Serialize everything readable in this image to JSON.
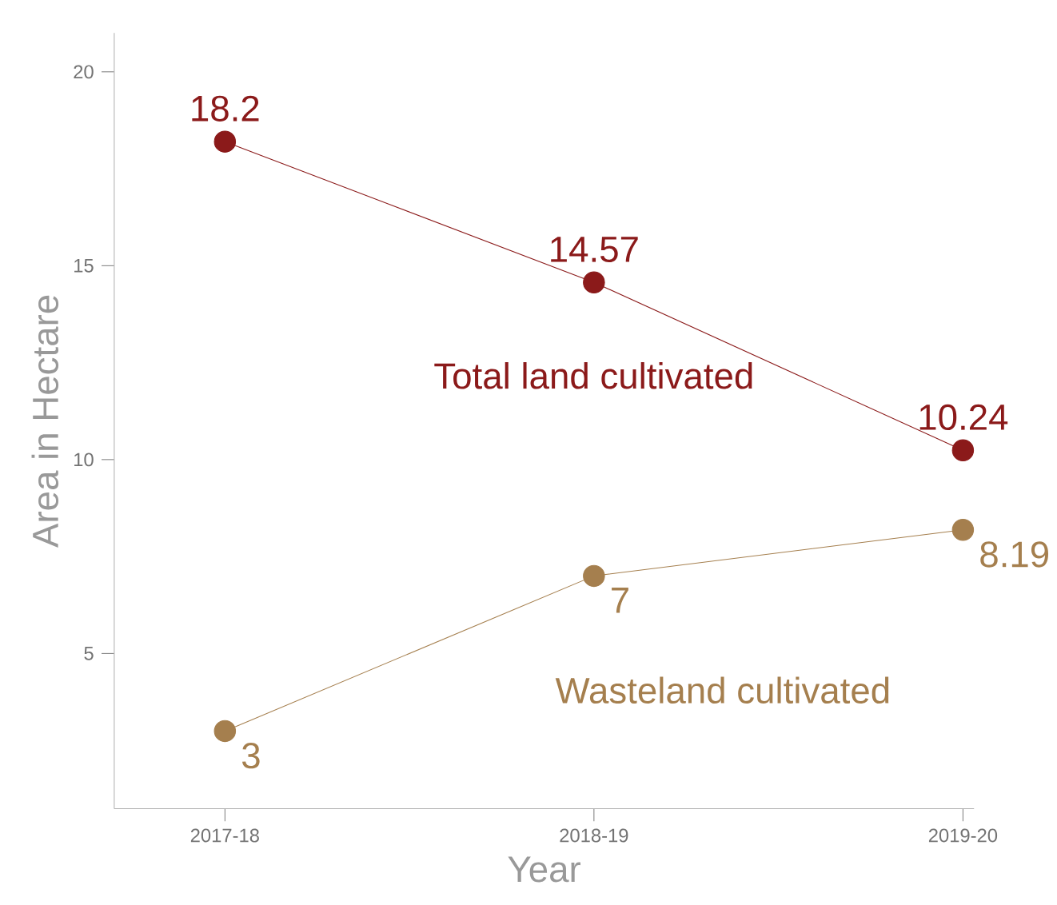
{
  "chart_data": {
    "type": "line",
    "xlabel": "Year",
    "ylabel": "Area in Hectare",
    "categories": [
      "2017-18",
      "2018-19",
      "2019-20"
    ],
    "series": [
      {
        "name": "Total land cultivated",
        "color": "#8b1a1a",
        "values": [
          18.2,
          14.57,
          10.24
        ]
      },
      {
        "name": "Wasteland cultivated",
        "color": "#a57f4e",
        "values": [
          3,
          7,
          8.19
        ]
      }
    ],
    "ylim": [
      1,
      21
    ],
    "yticks": [
      5,
      10,
      15,
      20
    ],
    "data_labels": true,
    "marker": "circle",
    "legend": false,
    "grid": false
  }
}
